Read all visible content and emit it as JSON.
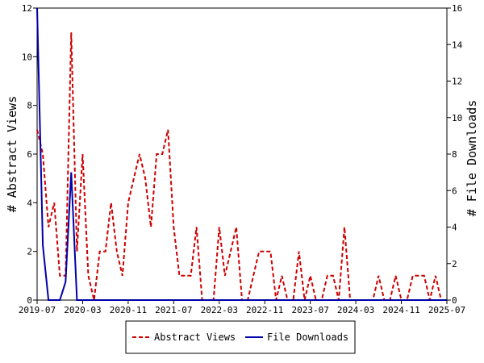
{
  "chart_data": {
    "type": "line",
    "title": "",
    "xlabel": "",
    "ylabel_left": "# Abstract Views",
    "ylabel_right": "# File Downloads",
    "ylim_left": [
      0,
      12
    ],
    "ylim_right": [
      0,
      16
    ],
    "yticks_left": [
      "0",
      "2",
      "4",
      "6",
      "8",
      "10",
      "12"
    ],
    "yticks_right": [
      "0",
      "2",
      "4",
      "6",
      "8",
      "10",
      "12",
      "14",
      "16"
    ],
    "x_start": "2019-07",
    "x_end": "2025-07",
    "xtick_labels": [
      "2019-07",
      "2020-03",
      "2020-11",
      "2021-07",
      "2022-03",
      "2022-11",
      "2023-07",
      "2024-03",
      "2024-11",
      "2025-07"
    ],
    "legend_position": "bottom",
    "grid": false,
    "series": [
      {
        "name": "Abstract Views",
        "axis": "left",
        "color": "#cc0000",
        "dash": "dashed",
        "points": [
          [
            "2019-07",
            7
          ],
          [
            "2019-08",
            6
          ],
          [
            "2019-09",
            3
          ],
          [
            "2019-10",
            4
          ],
          [
            "2019-11",
            1
          ],
          [
            "2019-12",
            1
          ],
          [
            "2020-01",
            11
          ],
          [
            "2020-02",
            2
          ],
          [
            "2020-03",
            6
          ],
          [
            "2020-04",
            1
          ],
          [
            "2020-05",
            0
          ],
          [
            "2020-06",
            2
          ],
          [
            "2020-07",
            2
          ],
          [
            "2020-08",
            4
          ],
          [
            "2020-09",
            2
          ],
          [
            "2020-10",
            1
          ],
          [
            "2020-11",
            4
          ],
          [
            "2020-12",
            5
          ],
          [
            "2021-01",
            6
          ],
          [
            "2021-02",
            5
          ],
          [
            "2021-03",
            3
          ],
          [
            "2021-04",
            6
          ],
          [
            "2021-05",
            6
          ],
          [
            "2021-06",
            7
          ],
          [
            "2021-07",
            3
          ],
          [
            "2021-08",
            1
          ],
          [
            "2021-09",
            1
          ],
          [
            "2021-10",
            1
          ],
          [
            "2021-11",
            3
          ],
          [
            "2021-12",
            0
          ],
          [
            "2022-01",
            0
          ],
          [
            "2022-02",
            0
          ],
          [
            "2022-03",
            3
          ],
          [
            "2022-04",
            1
          ],
          [
            "2022-05",
            2
          ],
          [
            "2022-06",
            3
          ],
          [
            "2022-07",
            0
          ],
          [
            "2022-08",
            0
          ],
          [
            "2022-09",
            1
          ],
          [
            "2022-10",
            2
          ],
          [
            "2022-11",
            2
          ],
          [
            "2022-12",
            2
          ],
          [
            "2023-01",
            0
          ],
          [
            "2023-02",
            1
          ],
          [
            "2023-03",
            0
          ],
          [
            "2023-04",
            0
          ],
          [
            "2023-05",
            2
          ],
          [
            "2023-06",
            0
          ],
          [
            "2023-07",
            1
          ],
          [
            "2023-08",
            0
          ],
          [
            "2023-09",
            0
          ],
          [
            "2023-10",
            1
          ],
          [
            "2023-11",
            1
          ],
          [
            "2023-12",
            0
          ],
          [
            "2024-01",
            3
          ],
          [
            "2024-02",
            0
          ],
          [
            "2024-03",
            0
          ],
          [
            "2024-04",
            0
          ],
          [
            "2024-05",
            0
          ],
          [
            "2024-06",
            0
          ],
          [
            "2024-07",
            1
          ],
          [
            "2024-08",
            0
          ],
          [
            "2024-09",
            0
          ],
          [
            "2024-10",
            1
          ],
          [
            "2024-11",
            0
          ],
          [
            "2024-12",
            0
          ],
          [
            "2025-01",
            1
          ],
          [
            "2025-02",
            1
          ],
          [
            "2025-03",
            1
          ],
          [
            "2025-04",
            0
          ],
          [
            "2025-05",
            1
          ],
          [
            "2025-06",
            0
          ],
          [
            "2025-07",
            0
          ]
        ]
      },
      {
        "name": "File Downloads",
        "axis": "right",
        "color": "#0000aa",
        "dash": "solid",
        "points": [
          [
            "2019-07",
            16
          ],
          [
            "2019-08",
            3
          ],
          [
            "2019-09",
            0
          ],
          [
            "2019-10",
            0
          ],
          [
            "2019-11",
            0
          ],
          [
            "2019-12",
            1
          ],
          [
            "2020-01",
            7
          ],
          [
            "2020-02",
            0
          ],
          [
            "2020-03",
            0
          ],
          [
            "2020-06",
            0
          ],
          [
            "2021-01",
            0
          ],
          [
            "2022-01",
            0
          ],
          [
            "2023-01",
            0
          ],
          [
            "2024-01",
            0
          ],
          [
            "2025-01",
            0
          ],
          [
            "2025-07",
            0
          ]
        ]
      }
    ]
  }
}
